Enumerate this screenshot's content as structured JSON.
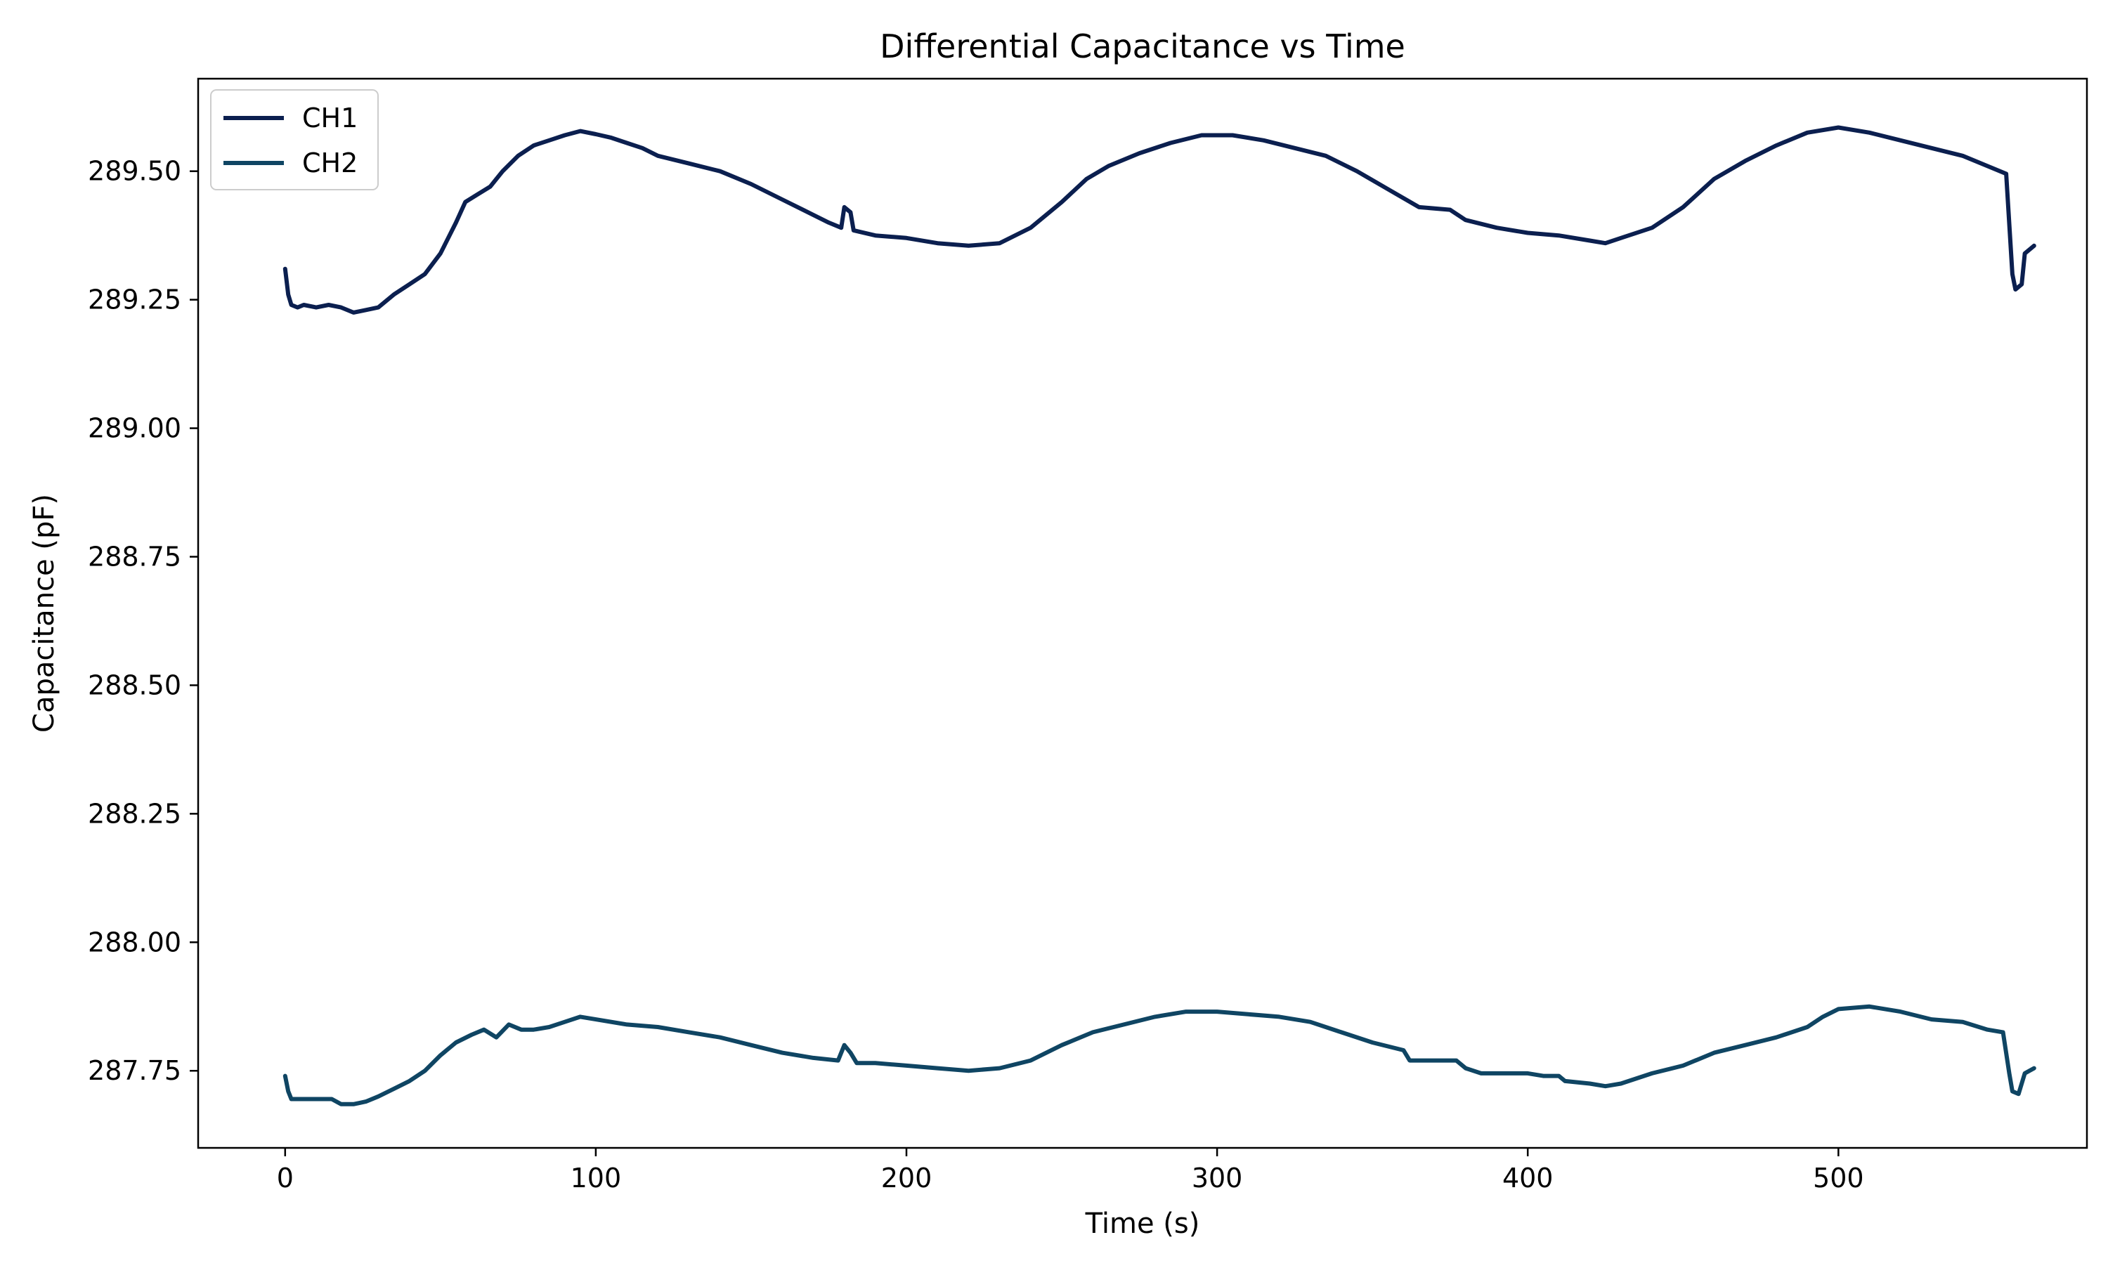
{
  "chart_data": {
    "type": "line",
    "title": "Differential Capacitance vs Time",
    "xlabel": "Time (s)",
    "ylabel": "Capacitance (pF)",
    "xlim": [
      -28,
      580
    ],
    "ylim": [
      287.6,
      289.68
    ],
    "xticks": [
      0,
      100,
      200,
      300,
      400,
      500
    ],
    "yticks": [
      287.75,
      288.0,
      288.25,
      288.5,
      288.75,
      289.0,
      289.25,
      289.5
    ],
    "xtick_labels": [
      "0",
      "100",
      "200",
      "300",
      "400",
      "500"
    ],
    "ytick_labels": [
      "287.75",
      "288.00",
      "288.25",
      "288.50",
      "288.75",
      "289.00",
      "289.25",
      "289.50"
    ],
    "grid": false,
    "legend_position": "top-left",
    "series": [
      {
        "name": "CH1",
        "color": "#0b1f4f",
        "points": [
          [
            0,
            289.31
          ],
          [
            1,
            289.26
          ],
          [
            2,
            289.24
          ],
          [
            4,
            289.235
          ],
          [
            6,
            289.24
          ],
          [
            10,
            289.235
          ],
          [
            14,
            289.24
          ],
          [
            18,
            289.235
          ],
          [
            22,
            289.225
          ],
          [
            26,
            289.23
          ],
          [
            30,
            289.235
          ],
          [
            35,
            289.26
          ],
          [
            40,
            289.28
          ],
          [
            45,
            289.3
          ],
          [
            50,
            289.34
          ],
          [
            55,
            289.4
          ],
          [
            58,
            289.44
          ],
          [
            62,
            289.455
          ],
          [
            66,
            289.47
          ],
          [
            70,
            289.5
          ],
          [
            75,
            289.53
          ],
          [
            80,
            289.55
          ],
          [
            85,
            289.56
          ],
          [
            90,
            289.57
          ],
          [
            95,
            289.578
          ],
          [
            100,
            289.572
          ],
          [
            105,
            289.565
          ],
          [
            110,
            289.555
          ],
          [
            115,
            289.545
          ],
          [
            120,
            289.53
          ],
          [
            130,
            289.515
          ],
          [
            140,
            289.5
          ],
          [
            150,
            289.475
          ],
          [
            160,
            289.445
          ],
          [
            170,
            289.415
          ],
          [
            175,
            289.4
          ],
          [
            179,
            289.39
          ],
          [
            180,
            289.43
          ],
          [
            182,
            289.42
          ],
          [
            183,
            289.385
          ],
          [
            190,
            289.375
          ],
          [
            200,
            289.37
          ],
          [
            210,
            289.36
          ],
          [
            220,
            289.355
          ],
          [
            230,
            289.36
          ],
          [
            240,
            289.39
          ],
          [
            250,
            289.44
          ],
          [
            258,
            289.485
          ],
          [
            265,
            289.51
          ],
          [
            275,
            289.535
          ],
          [
            285,
            289.555
          ],
          [
            295,
            289.57
          ],
          [
            305,
            289.57
          ],
          [
            315,
            289.56
          ],
          [
            325,
            289.545
          ],
          [
            335,
            289.53
          ],
          [
            345,
            289.5
          ],
          [
            355,
            289.465
          ],
          [
            365,
            289.43
          ],
          [
            375,
            289.425
          ],
          [
            380,
            289.405
          ],
          [
            390,
            289.39
          ],
          [
            400,
            289.38
          ],
          [
            410,
            289.375
          ],
          [
            420,
            289.365
          ],
          [
            425,
            289.36
          ],
          [
            430,
            289.37
          ],
          [
            440,
            289.39
          ],
          [
            450,
            289.43
          ],
          [
            460,
            289.485
          ],
          [
            470,
            289.52
          ],
          [
            480,
            289.55
          ],
          [
            490,
            289.575
          ],
          [
            500,
            289.585
          ],
          [
            510,
            289.575
          ],
          [
            520,
            289.56
          ],
          [
            530,
            289.545
          ],
          [
            540,
            289.53
          ],
          [
            548,
            289.51
          ],
          [
            554,
            289.495
          ],
          [
            556,
            289.3
          ],
          [
            557,
            289.27
          ],
          [
            559,
            289.28
          ],
          [
            560,
            289.34
          ],
          [
            563,
            289.355
          ]
        ]
      },
      {
        "name": "CH2",
        "color": "#0f4563",
        "points": [
          [
            0,
            287.74
          ],
          [
            1,
            287.71
          ],
          [
            2,
            287.695
          ],
          [
            6,
            287.695
          ],
          [
            10,
            287.695
          ],
          [
            15,
            287.695
          ],
          [
            18,
            287.685
          ],
          [
            22,
            287.685
          ],
          [
            26,
            287.69
          ],
          [
            30,
            287.7
          ],
          [
            35,
            287.715
          ],
          [
            40,
            287.73
          ],
          [
            45,
            287.75
          ],
          [
            50,
            287.78
          ],
          [
            55,
            287.805
          ],
          [
            60,
            287.82
          ],
          [
            64,
            287.83
          ],
          [
            68,
            287.815
          ],
          [
            72,
            287.84
          ],
          [
            76,
            287.83
          ],
          [
            80,
            287.83
          ],
          [
            85,
            287.835
          ],
          [
            90,
            287.845
          ],
          [
            95,
            287.855
          ],
          [
            100,
            287.85
          ],
          [
            110,
            287.84
          ],
          [
            120,
            287.835
          ],
          [
            130,
            287.825
          ],
          [
            140,
            287.815
          ],
          [
            150,
            287.8
          ],
          [
            160,
            287.785
          ],
          [
            170,
            287.775
          ],
          [
            178,
            287.77
          ],
          [
            180,
            287.8
          ],
          [
            182,
            287.785
          ],
          [
            184,
            287.765
          ],
          [
            190,
            287.765
          ],
          [
            200,
            287.76
          ],
          [
            210,
            287.755
          ],
          [
            220,
            287.75
          ],
          [
            230,
            287.755
          ],
          [
            240,
            287.77
          ],
          [
            250,
            287.8
          ],
          [
            260,
            287.825
          ],
          [
            270,
            287.84
          ],
          [
            280,
            287.855
          ],
          [
            290,
            287.865
          ],
          [
            300,
            287.865
          ],
          [
            310,
            287.86
          ],
          [
            320,
            287.855
          ],
          [
            330,
            287.845
          ],
          [
            340,
            287.825
          ],
          [
            350,
            287.805
          ],
          [
            360,
            287.79
          ],
          [
            362,
            287.77
          ],
          [
            370,
            287.77
          ],
          [
            377,
            287.77
          ],
          [
            380,
            287.755
          ],
          [
            385,
            287.745
          ],
          [
            390,
            287.745
          ],
          [
            400,
            287.745
          ],
          [
            405,
            287.74
          ],
          [
            410,
            287.74
          ],
          [
            412,
            287.73
          ],
          [
            420,
            287.725
          ],
          [
            425,
            287.72
          ],
          [
            430,
            287.725
          ],
          [
            440,
            287.745
          ],
          [
            450,
            287.76
          ],
          [
            460,
            287.785
          ],
          [
            470,
            287.8
          ],
          [
            480,
            287.815
          ],
          [
            490,
            287.835
          ],
          [
            495,
            287.855
          ],
          [
            500,
            287.87
          ],
          [
            510,
            287.875
          ],
          [
            520,
            287.865
          ],
          [
            530,
            287.85
          ],
          [
            540,
            287.845
          ],
          [
            548,
            287.83
          ],
          [
            553,
            287.825
          ],
          [
            555,
            287.745
          ],
          [
            556,
            287.71
          ],
          [
            558,
            287.705
          ],
          [
            560,
            287.745
          ],
          [
            563,
            287.755
          ]
        ]
      }
    ]
  }
}
